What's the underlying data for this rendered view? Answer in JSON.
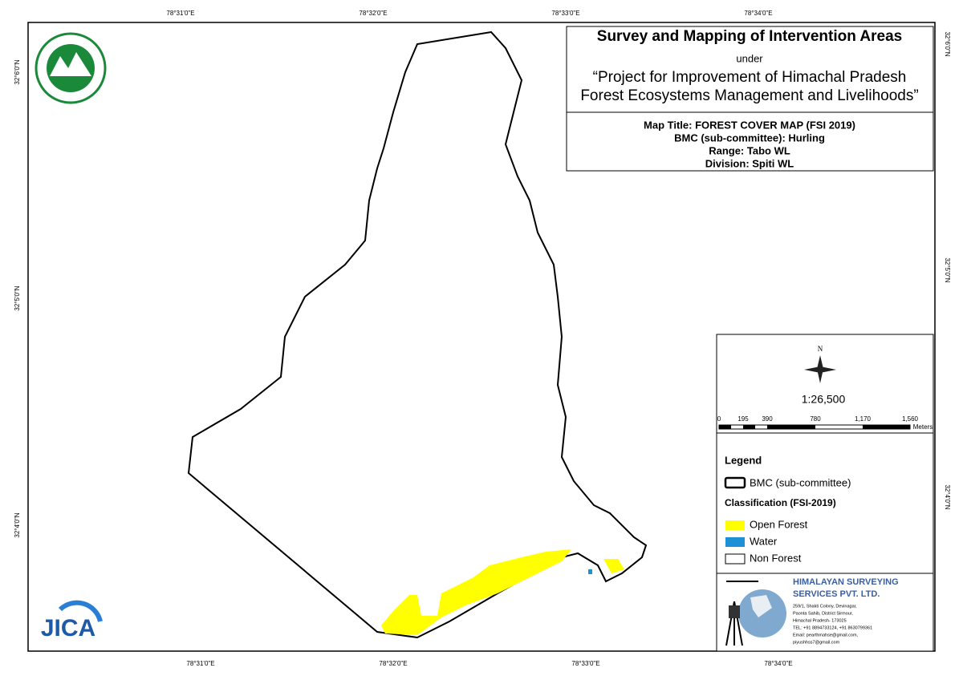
{
  "grid": {
    "top": [
      "78°31'0\"E",
      "78°32'0\"E",
      "78°33'0\"E",
      "78°34'0\"E"
    ],
    "bottom": [
      "78°31'0\"E",
      "78°32'0\"E",
      "78°33'0\"E",
      "78°34'0\"E"
    ],
    "left": [
      "32°6'0\"N",
      "32°5'0\"N",
      "32°4'0\"N"
    ],
    "right": [
      "32°6'0\"N",
      "32°5'0\"N",
      "32°4'0\"N"
    ]
  },
  "header": {
    "title": "Survey and Mapping of Intervention Areas",
    "under": "under",
    "project": [
      "“Project for Improvement of Himachal Pradesh",
      "Forest Ecosystems Management and Livelihoods”"
    ],
    "details": [
      "Map Title: FOREST COVER MAP (FSI 2019)",
      "BMC (sub-committee): Hurling",
      "Range: Tabo WL",
      "Division: Spiti WL"
    ]
  },
  "north": "N",
  "scale": "1:26,500",
  "scale_bar": {
    "labels": [
      "0",
      "195",
      "390",
      "780",
      "1,170",
      "1,560"
    ],
    "unit": "Meters"
  },
  "legend": {
    "title": "Legend",
    "boundary": "BMC (sub-committee)",
    "classification": "Classification (FSI-2019)",
    "items": [
      {
        "label": "Open Forest",
        "color": "#ffff00"
      },
      {
        "label": "Water",
        "color": "#1e90d6"
      },
      {
        "label": "Non Forest",
        "color": "#ffffff"
      }
    ]
  },
  "company": {
    "name": [
      "HIMALAYAN SURVEYING",
      "SERVICES PVT. LTD."
    ],
    "address": [
      "259/1, Shakti Colony, Devinagar,",
      "Paonta Sahib, District Sirmour,",
      "Himachal Pradesh- 173025",
      "TEL: +91 8894733124, +91 8630799361",
      "Email: pearthmahse@gmail.com,",
      "piyushhss7@gmail.com"
    ]
  },
  "logo": "JICA"
}
